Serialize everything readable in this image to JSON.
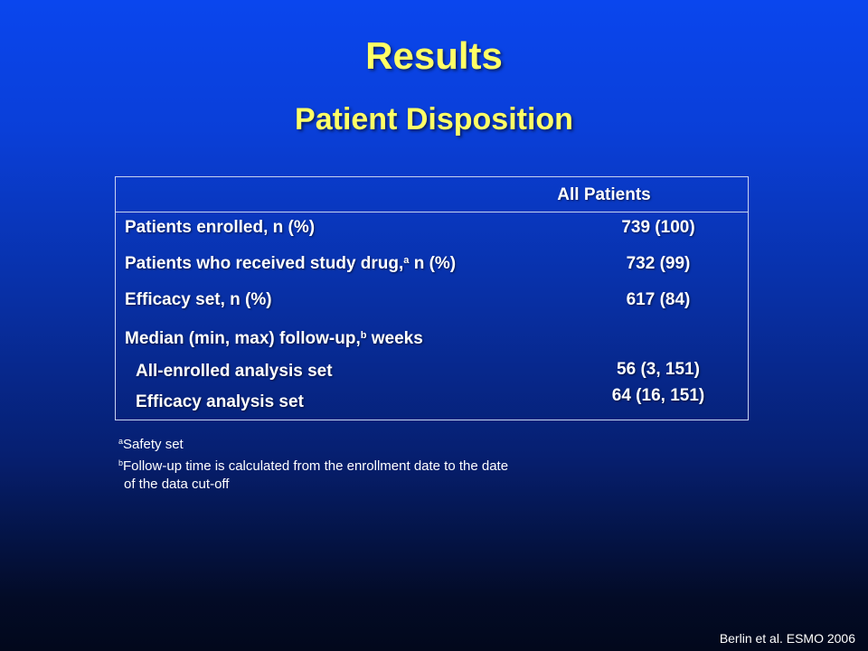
{
  "slide": {
    "title": "Results",
    "subtitle": "Patient Disposition",
    "colors": {
      "background_top": "#0a46ee",
      "background_bottom": "#02081c",
      "title": "#ffff66",
      "text": "#ffffff"
    }
  },
  "table": {
    "column_header": "All Patients",
    "rows": [
      {
        "label": "Patients enrolled, n (%)",
        "value": "739 (100)"
      },
      {
        "label_pre": "Patients who received study drug,",
        "label_sup": "a",
        "label_post": " n (%)",
        "value": "732 (99)"
      },
      {
        "label": "Efficacy set, n (%)",
        "value": "617 (84)"
      },
      {
        "label_pre": "Median (min, max) follow-up,",
        "label_sup": "b",
        "label_post": " weeks",
        "value": ""
      },
      {
        "label": "All-enrolled analysis set",
        "value": "56 (3, 151)"
      },
      {
        "label": "Efficacy analysis set",
        "value": "64 (16, 151)"
      }
    ]
  },
  "footnotes": [
    {
      "marker": "a",
      "text": "Safety set"
    },
    {
      "marker": "b",
      "text": "Follow-up time is calculated from the enrollment date to the date"
    },
    {
      "marker": "",
      "text": "of the data cut-off"
    }
  ],
  "citation": "Berlin et al. ESMO 2006"
}
